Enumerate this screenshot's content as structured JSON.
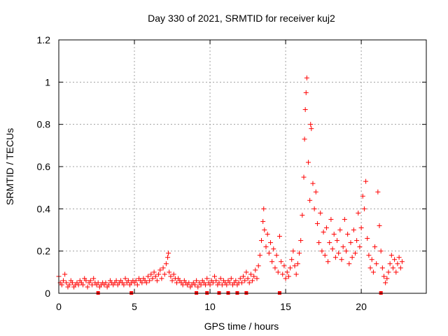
{
  "chart_data": {
    "type": "scatter",
    "title": "Day 330 of 2021, SRMTID for receiver kuj2",
    "xlabel": "GPS time / hours",
    "ylabel": "SRMTID / TECUs",
    "xlim": [
      0,
      24.3
    ],
    "ylim": [
      0,
      1.2
    ],
    "xticks": [
      0,
      5,
      10,
      15,
      20
    ],
    "xtick_labels": [
      "0",
      "5",
      "10",
      "15",
      "20"
    ],
    "yticks": [
      0,
      0.2,
      0.4,
      0.6,
      0.8,
      1.0,
      1.2
    ],
    "ytick_labels": [
      "0",
      "0.2",
      "0.4",
      "0.6",
      "0.8",
      "1",
      "1.2"
    ],
    "grid": true,
    "marker": "+",
    "color": "#ff0000",
    "series": [
      {
        "name": "SRMTID",
        "points": [
          [
            0.0,
            0.08
          ],
          [
            0.1,
            0.05
          ],
          [
            0.2,
            0.04
          ],
          [
            0.3,
            0.06
          ],
          [
            0.4,
            0.09
          ],
          [
            0.5,
            0.05
          ],
          [
            0.6,
            0.03
          ],
          [
            0.7,
            0.04
          ],
          [
            0.8,
            0.06
          ],
          [
            0.9,
            0.05
          ],
          [
            1.0,
            0.03
          ],
          [
            1.1,
            0.04
          ],
          [
            1.2,
            0.05
          ],
          [
            1.3,
            0.04
          ],
          [
            1.4,
            0.06
          ],
          [
            1.5,
            0.05
          ],
          [
            1.6,
            0.04
          ],
          [
            1.7,
            0.07
          ],
          [
            1.8,
            0.06
          ],
          [
            1.9,
            0.03
          ],
          [
            2.0,
            0.05
          ],
          [
            2.1,
            0.06
          ],
          [
            2.2,
            0.04
          ],
          [
            2.3,
            0.07
          ],
          [
            2.4,
            0.05
          ],
          [
            2.5,
            0.04
          ],
          [
            2.6,
            0.05
          ],
          [
            2.7,
            0.03
          ],
          [
            2.8,
            0.04
          ],
          [
            2.9,
            0.05
          ],
          [
            3.0,
            0.04
          ],
          [
            3.1,
            0.05
          ],
          [
            3.2,
            0.03
          ],
          [
            3.3,
            0.04
          ],
          [
            3.4,
            0.06
          ],
          [
            3.5,
            0.05
          ],
          [
            3.6,
            0.04
          ],
          [
            3.7,
            0.05
          ],
          [
            3.8,
            0.06
          ],
          [
            3.9,
            0.04
          ],
          [
            4.0,
            0.05
          ],
          [
            4.1,
            0.06
          ],
          [
            4.2,
            0.05
          ],
          [
            4.3,
            0.04
          ],
          [
            4.4,
            0.07
          ],
          [
            4.5,
            0.05
          ],
          [
            4.6,
            0.06
          ],
          [
            4.7,
            0.04
          ],
          [
            4.8,
            0.05
          ],
          [
            4.9,
            0.06
          ],
          [
            5.0,
            0.05
          ],
          [
            5.1,
            0.06
          ],
          [
            5.2,
            0.04
          ],
          [
            5.3,
            0.07
          ],
          [
            5.4,
            0.06
          ],
          [
            5.5,
            0.05
          ],
          [
            5.6,
            0.07
          ],
          [
            5.7,
            0.06
          ],
          [
            5.8,
            0.05
          ],
          [
            5.9,
            0.08
          ],
          [
            6.0,
            0.06
          ],
          [
            6.1,
            0.09
          ],
          [
            6.2,
            0.07
          ],
          [
            6.3,
            0.1
          ],
          [
            6.4,
            0.08
          ],
          [
            6.5,
            0.06
          ],
          [
            6.6,
            0.09
          ],
          [
            6.7,
            0.11
          ],
          [
            6.8,
            0.07
          ],
          [
            6.9,
            0.12
          ],
          [
            7.0,
            0.09
          ],
          [
            7.1,
            0.14
          ],
          [
            7.2,
            0.17
          ],
          [
            7.25,
            0.19
          ],
          [
            7.3,
            0.1
          ],
          [
            7.4,
            0.08
          ],
          [
            7.5,
            0.06
          ],
          [
            7.6,
            0.09
          ],
          [
            7.7,
            0.07
          ],
          [
            7.8,
            0.05
          ],
          [
            7.9,
            0.07
          ],
          [
            8.0,
            0.06
          ],
          [
            8.1,
            0.05
          ],
          [
            8.2,
            0.04
          ],
          [
            8.3,
            0.06
          ],
          [
            8.4,
            0.05
          ],
          [
            8.5,
            0.04
          ],
          [
            8.6,
            0.05
          ],
          [
            8.7,
            0.03
          ],
          [
            8.8,
            0.04
          ],
          [
            8.9,
            0.05
          ],
          [
            9.0,
            0.04
          ],
          [
            9.1,
            0.06
          ],
          [
            9.2,
            0.03
          ],
          [
            9.3,
            0.05
          ],
          [
            9.4,
            0.04
          ],
          [
            9.5,
            0.06
          ],
          [
            9.6,
            0.05
          ],
          [
            9.7,
            0.04
          ],
          [
            9.8,
            0.07
          ],
          [
            9.9,
            0.05
          ],
          [
            10.0,
            0.04
          ],
          [
            10.1,
            0.06
          ],
          [
            10.2,
            0.05
          ],
          [
            10.3,
            0.08
          ],
          [
            10.4,
            0.06
          ],
          [
            10.5,
            0.04
          ],
          [
            10.6,
            0.05
          ],
          [
            10.7,
            0.07
          ],
          [
            10.8,
            0.04
          ],
          [
            10.9,
            0.06
          ],
          [
            11.0,
            0.05
          ],
          [
            11.1,
            0.04
          ],
          [
            11.2,
            0.06
          ],
          [
            11.3,
            0.05
          ],
          [
            11.4,
            0.07
          ],
          [
            11.5,
            0.04
          ],
          [
            11.6,
            0.05
          ],
          [
            11.7,
            0.06
          ],
          [
            11.8,
            0.04
          ],
          [
            11.9,
            0.05
          ],
          [
            12.0,
            0.07
          ],
          [
            12.1,
            0.05
          ],
          [
            12.2,
            0.08
          ],
          [
            12.3,
            0.06
          ],
          [
            12.4,
            0.1
          ],
          [
            12.5,
            0.07
          ],
          [
            12.6,
            0.05
          ],
          [
            12.7,
            0.09
          ],
          [
            12.8,
            0.06
          ],
          [
            12.9,
            0.08
          ],
          [
            13.0,
            0.11
          ],
          [
            13.1,
            0.07
          ],
          [
            13.2,
            0.13
          ],
          [
            13.3,
            0.18
          ],
          [
            13.4,
            0.25
          ],
          [
            13.5,
            0.34
          ],
          [
            13.55,
            0.4
          ],
          [
            13.6,
            0.3
          ],
          [
            13.7,
            0.22
          ],
          [
            13.8,
            0.28
          ],
          [
            13.9,
            0.19
          ],
          [
            14.0,
            0.24
          ],
          [
            14.1,
            0.15
          ],
          [
            14.2,
            0.21
          ],
          [
            14.3,
            0.12
          ],
          [
            14.4,
            0.18
          ],
          [
            14.5,
            0.1
          ],
          [
            14.6,
            0.27
          ],
          [
            14.7,
            0.15
          ],
          [
            14.8,
            0.09
          ],
          [
            14.9,
            0.13
          ],
          [
            15.0,
            0.07
          ],
          [
            15.1,
            0.1
          ],
          [
            15.2,
            0.08
          ],
          [
            15.3,
            0.12
          ],
          [
            15.4,
            0.16
          ],
          [
            15.5,
            0.2
          ],
          [
            15.6,
            0.13
          ],
          [
            15.7,
            0.09
          ],
          [
            15.8,
            0.14
          ],
          [
            15.9,
            0.19
          ],
          [
            16.0,
            0.25
          ],
          [
            16.1,
            0.37
          ],
          [
            16.2,
            0.55
          ],
          [
            16.25,
            0.73
          ],
          [
            16.3,
            0.87
          ],
          [
            16.35,
            0.95
          ],
          [
            16.4,
            1.02
          ],
          [
            16.5,
            0.62
          ],
          [
            16.6,
            0.44
          ],
          [
            16.65,
            0.8
          ],
          [
            16.7,
            0.78
          ],
          [
            16.8,
            0.52
          ],
          [
            16.9,
            0.4
          ],
          [
            17.0,
            0.48
          ],
          [
            17.1,
            0.33
          ],
          [
            17.2,
            0.24
          ],
          [
            17.3,
            0.38
          ],
          [
            17.4,
            0.2
          ],
          [
            17.5,
            0.29
          ],
          [
            17.6,
            0.18
          ],
          [
            17.7,
            0.31
          ],
          [
            17.8,
            0.15
          ],
          [
            17.9,
            0.24
          ],
          [
            18.0,
            0.35
          ],
          [
            18.1,
            0.21
          ],
          [
            18.2,
            0.28
          ],
          [
            18.3,
            0.17
          ],
          [
            18.4,
            0.25
          ],
          [
            18.5,
            0.19
          ],
          [
            18.6,
            0.3
          ],
          [
            18.7,
            0.16
          ],
          [
            18.8,
            0.22
          ],
          [
            18.9,
            0.35
          ],
          [
            19.0,
            0.2
          ],
          [
            19.1,
            0.28
          ],
          [
            19.2,
            0.14
          ],
          [
            19.3,
            0.24
          ],
          [
            19.4,
            0.17
          ],
          [
            19.5,
            0.3
          ],
          [
            19.6,
            0.19
          ],
          [
            19.7,
            0.25
          ],
          [
            19.8,
            0.38
          ],
          [
            19.9,
            0.22
          ],
          [
            20.0,
            0.31
          ],
          [
            20.1,
            0.46
          ],
          [
            20.2,
            0.4
          ],
          [
            20.3,
            0.53
          ],
          [
            20.4,
            0.26
          ],
          [
            20.5,
            0.18
          ],
          [
            20.6,
            0.12
          ],
          [
            20.7,
            0.16
          ],
          [
            20.8,
            0.1
          ],
          [
            20.9,
            0.22
          ],
          [
            21.0,
            0.14
          ],
          [
            21.1,
            0.48
          ],
          [
            21.2,
            0.32
          ],
          [
            21.3,
            0.2
          ],
          [
            21.4,
            0.12
          ],
          [
            21.5,
            0.08
          ],
          [
            21.6,
            0.05
          ],
          [
            21.7,
            0.07
          ],
          [
            21.8,
            0.1
          ],
          [
            21.9,
            0.14
          ],
          [
            22.0,
            0.18
          ],
          [
            22.1,
            0.12
          ],
          [
            22.2,
            0.16
          ],
          [
            22.3,
            0.1
          ],
          [
            22.4,
            0.14
          ],
          [
            22.5,
            0.17
          ],
          [
            22.6,
            0.12
          ],
          [
            22.7,
            0.15
          ]
        ]
      }
    ],
    "ground_markers": [
      2.6,
      4.8,
      9.1,
      9.8,
      10.6,
      11.2,
      11.8,
      12.4,
      14.6,
      21.3
    ]
  }
}
